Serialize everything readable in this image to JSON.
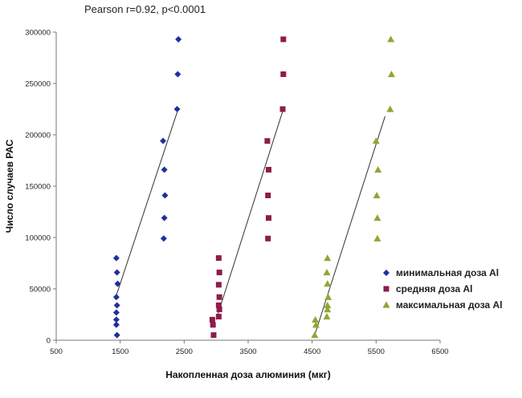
{
  "chart_data": {
    "type": "scatter",
    "title": "",
    "annotation": "Pearson r=0.92, p<0.0001",
    "xlabel": "Накопленная доза алюминия (мкг)",
    "ylabel": "Число случаев РАС",
    "xlim": [
      500,
      6500
    ],
    "ylim": [
      0,
      300000
    ],
    "xticks": [
      "500",
      "1500",
      "2500",
      "3500",
      "4500",
      "5500",
      "6500"
    ],
    "yticks": [
      "0",
      "50000",
      "100000",
      "150000",
      "200000",
      "250000",
      "300000"
    ],
    "grid": false,
    "legend_position": "right",
    "series": [
      {
        "name": "минимальная доза Al",
        "color": "#1f2f9e",
        "marker": "diamond",
        "points": [
          [
            1450,
            5000
          ],
          [
            1440,
            15000
          ],
          [
            1440,
            20000
          ],
          [
            1440,
            27000
          ],
          [
            1450,
            34000
          ],
          [
            1440,
            42000
          ],
          [
            1460,
            55000
          ],
          [
            1450,
            66000
          ],
          [
            1440,
            80000
          ],
          [
            2180,
            99000
          ],
          [
            2190,
            119000
          ],
          [
            2200,
            141000
          ],
          [
            2190,
            166000
          ],
          [
            2170,
            194000
          ],
          [
            2390,
            225000
          ],
          [
            2400,
            259000
          ],
          [
            2410,
            293000
          ]
        ],
        "trend": [
          [
            1420,
            40000
          ],
          [
            2390,
            222000
          ]
        ]
      },
      {
        "name": "средняя доза Al",
        "color": "#8e1c4b",
        "marker": "square",
        "points": [
          [
            2960,
            5000
          ],
          [
            2950,
            15000
          ],
          [
            2940,
            20000
          ],
          [
            3040,
            23000
          ],
          [
            3050,
            30000
          ],
          [
            3040,
            34000
          ],
          [
            3050,
            42000
          ],
          [
            3040,
            54000
          ],
          [
            3050,
            66000
          ],
          [
            3040,
            80000
          ],
          [
            3810,
            99000
          ],
          [
            3820,
            119000
          ],
          [
            3810,
            141000
          ],
          [
            3820,
            166000
          ],
          [
            3800,
            194000
          ],
          [
            4040,
            225000
          ],
          [
            4050,
            259000
          ],
          [
            4050,
            293000
          ]
        ],
        "trend": [
          [
            3000,
            20000
          ],
          [
            4040,
            223000
          ]
        ]
      },
      {
        "name": "максимальная доза Al",
        "color": "#8ea832",
        "marker": "triangle",
        "points": [
          [
            4540,
            5000
          ],
          [
            4560,
            15000
          ],
          [
            4550,
            20000
          ],
          [
            4730,
            23000
          ],
          [
            4740,
            30000
          ],
          [
            4740,
            34000
          ],
          [
            4750,
            42000
          ],
          [
            4740,
            55000
          ],
          [
            4730,
            66000
          ],
          [
            4740,
            80000
          ],
          [
            5520,
            99000
          ],
          [
            5520,
            119000
          ],
          [
            5510,
            141000
          ],
          [
            5530,
            166000
          ],
          [
            5500,
            194000
          ],
          [
            5720,
            225000
          ],
          [
            5740,
            259000
          ],
          [
            5730,
            293000
          ]
        ],
        "trend": [
          [
            4540,
            5000
          ],
          [
            5640,
            218000
          ]
        ]
      }
    ]
  }
}
